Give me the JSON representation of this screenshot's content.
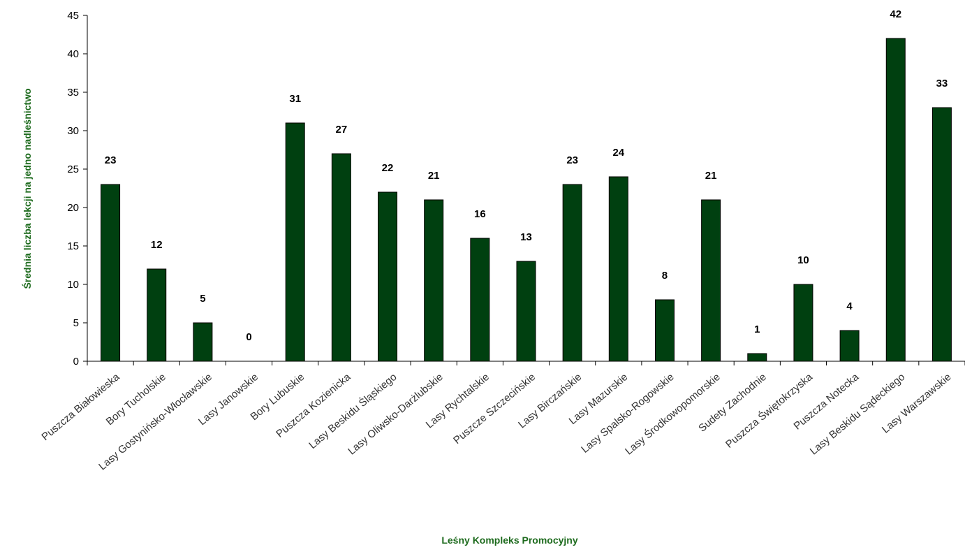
{
  "chart_data": {
    "type": "bar",
    "title": "",
    "xlabel": "Leśny Kompleks Promocyjny",
    "ylabel": "Średnia liczba lekcji na jedno nadleśnictwo",
    "ylim": [
      0,
      45
    ],
    "yticks": [
      0,
      5,
      10,
      15,
      20,
      25,
      30,
      35,
      40,
      45
    ],
    "grid": false,
    "legend": "none",
    "bar_color": "#004010",
    "categories": [
      "Puszcza Białowieska",
      "Bory Tucholskie",
      "Lasy Gostynińsko-Włocławskie",
      "Lasy Janowskie",
      "Bory Lubuskie",
      "Puszcza Kozienicka",
      "Lasy Beskidu Śląskiego",
      "Lasy Oliwsko-Darżlubskie",
      "Lasy Rychtalskie",
      "Puszcze Szczecińskie",
      "Lasy Birczańskie",
      "Lasy Mazurskie",
      "Lasy Spalsko-Rogowskie",
      "Lasy Środkowopomorskie",
      "Sudety Zachodnie",
      "Puszcza Świętokrzyska",
      "Puszcza Notecka",
      "Lasy Beskidu Sądeckiego",
      "Lasy Warszawskie"
    ],
    "values": [
      23,
      12,
      5,
      0,
      31,
      27,
      22,
      21,
      16,
      13,
      23,
      24,
      8,
      21,
      1,
      10,
      4,
      42,
      33
    ]
  }
}
